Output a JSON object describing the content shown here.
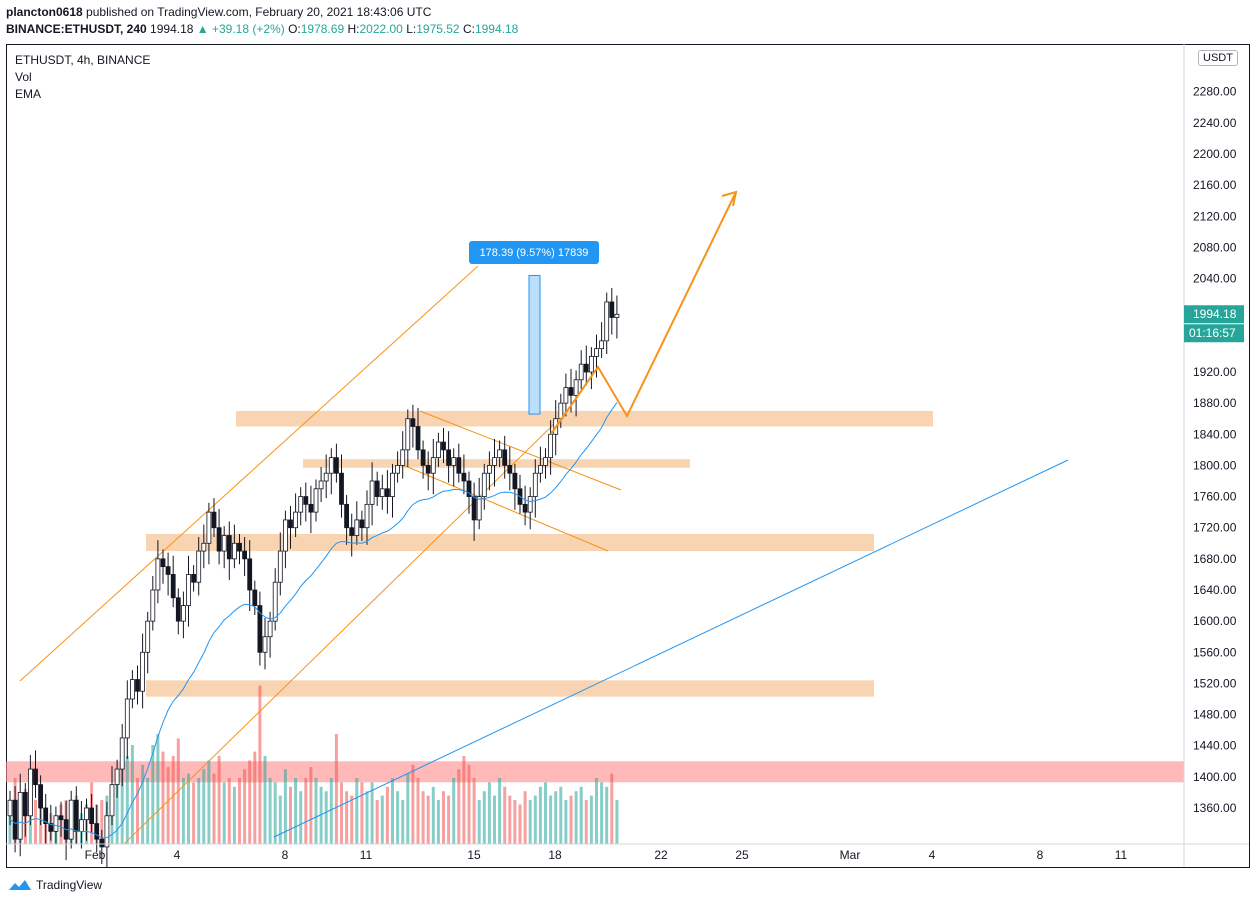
{
  "header": {
    "user": "plancton0618",
    "published": "published on TradingView.com, February 20, 2021 18:43:06 UTC",
    "symbol_line": "BINANCE:ETHUSDT, 240",
    "last": "1994.18",
    "change": "▲ +39.18 (+2%)",
    "o_label": "O:",
    "o_value": "1978.69",
    "h_label": "H:",
    "h_value": "2022.00",
    "l_label": "L:",
    "l_value": "1975.52",
    "c_label": "C:",
    "c_value": "1994.18"
  },
  "legend": {
    "symbol": "ETHUSDT, 4h, BINANCE",
    "vol": "Vol",
    "ema": "EMA"
  },
  "axis": {
    "currency": "USDT",
    "price_label": "1994.18",
    "countdown": "01:16:57",
    "price_ticks": [
      "2280.00",
      "2240.00",
      "2200.00",
      "2160.00",
      "2120.00",
      "2080.00",
      "2040.00",
      "1920.00",
      "1880.00",
      "1840.00",
      "1800.00",
      "1760.00",
      "1720.00",
      "1680.00",
      "1640.00",
      "1600.00",
      "1560.00",
      "1520.00",
      "1480.00",
      "1440.00",
      "1400.00",
      "1360.00"
    ],
    "date_ticks": [
      "Feb",
      "4",
      "8",
      "11",
      "15",
      "18",
      "22",
      "25",
      "Mar",
      "4",
      "8",
      "11"
    ]
  },
  "measure_label": "178.39 (9.57%) 17839",
  "footer": {
    "brand": "TradingView"
  },
  "colors": {
    "up": "#26a69a",
    "down": "#ef5350",
    "zone": "#f8c9a0",
    "support_red": "#ff8a8a",
    "orange": "#f7931a",
    "blue": "#2196f3",
    "ema": "#2196f3"
  },
  "chart_data": {
    "type": "candlestick",
    "symbol": "ETHUSDT",
    "timeframe": "4h",
    "exchange": "BINANCE",
    "ylim": [
      1330,
      2310
    ],
    "price_zones": [
      [
        1850,
        1870
      ],
      [
        1797,
        1808
      ],
      [
        1690,
        1712
      ],
      [
        1503,
        1524
      ]
    ],
    "support_zone": [
      1393,
      1420
    ],
    "closes": [
      1370,
      1320,
      1380,
      1350,
      1410,
      1390,
      1360,
      1340,
      1330,
      1350,
      1345,
      1320,
      1370,
      1330,
      1345,
      1360,
      1340,
      1320,
      1310,
      1350,
      1390,
      1410,
      1450,
      1500,
      1525,
      1510,
      1560,
      1600,
      1640,
      1680,
      1670,
      1660,
      1630,
      1600,
      1620,
      1660,
      1650,
      1690,
      1700,
      1740,
      1720,
      1690,
      1710,
      1680,
      1700,
      1690,
      1680,
      1640,
      1620,
      1560,
      1580,
      1600,
      1650,
      1690,
      1730,
      1720,
      1740,
      1760,
      1750,
      1740,
      1770,
      1780,
      1790,
      1810,
      1790,
      1750,
      1720,
      1710,
      1730,
      1720,
      1750,
      1780,
      1760,
      1770,
      1760,
      1790,
      1800,
      1820,
      1860,
      1850,
      1820,
      1800,
      1790,
      1810,
      1830,
      1820,
      1800,
      1810,
      1790,
      1780,
      1760,
      1730,
      1760,
      1790,
      1800,
      1810,
      1820,
      1800,
      1790,
      1770,
      1750,
      1740,
      1760,
      1790,
      1800,
      1810,
      1840,
      1860,
      1880,
      1900,
      1890,
      1910,
      1930,
      1920,
      1940,
      1950,
      1960,
      2010,
      1990,
      1994.18
    ],
    "volumes": [
      0.2,
      0.3,
      0.18,
      0.25,
      0.15,
      0.2,
      0.22,
      0.16,
      0.14,
      0.12,
      0.18,
      0.2,
      0.16,
      0.22,
      0.14,
      0.18,
      0.28,
      0.18,
      0.2,
      0.22,
      0.2,
      0.3,
      0.34,
      0.4,
      0.45,
      0.3,
      0.36,
      0.3,
      0.45,
      0.5,
      0.42,
      0.35,
      0.4,
      0.48,
      0.3,
      0.32,
      0.28,
      0.3,
      0.34,
      0.38,
      0.32,
      0.4,
      0.28,
      0.3,
      0.26,
      0.3,
      0.34,
      0.38,
      0.42,
      0.72,
      0.4,
      0.3,
      0.28,
      0.22,
      0.34,
      0.26,
      0.3,
      0.24,
      0.3,
      0.35,
      0.3,
      0.26,
      0.24,
      0.3,
      0.5,
      0.28,
      0.24,
      0.22,
      0.3,
      0.28,
      0.24,
      0.28,
      0.2,
      0.22,
      0.26,
      0.3,
      0.24,
      0.2,
      0.32,
      0.36,
      0.3,
      0.24,
      0.22,
      0.26,
      0.2,
      0.24,
      0.22,
      0.3,
      0.34,
      0.4,
      0.36,
      0.3,
      0.2,
      0.24,
      0.28,
      0.22,
      0.3,
      0.26,
      0.22,
      0.2,
      0.18,
      0.24,
      0.2,
      0.22,
      0.26,
      0.28,
      0.22,
      0.24,
      0.26,
      0.2,
      0.22,
      0.24,
      0.26,
      0.2,
      0.22,
      0.3,
      0.28,
      0.26,
      0.32,
      0.2
    ],
    "measure": {
      "from": 1866,
      "to": 2044,
      "text": "178.39 (9.57%) 17839"
    }
  }
}
